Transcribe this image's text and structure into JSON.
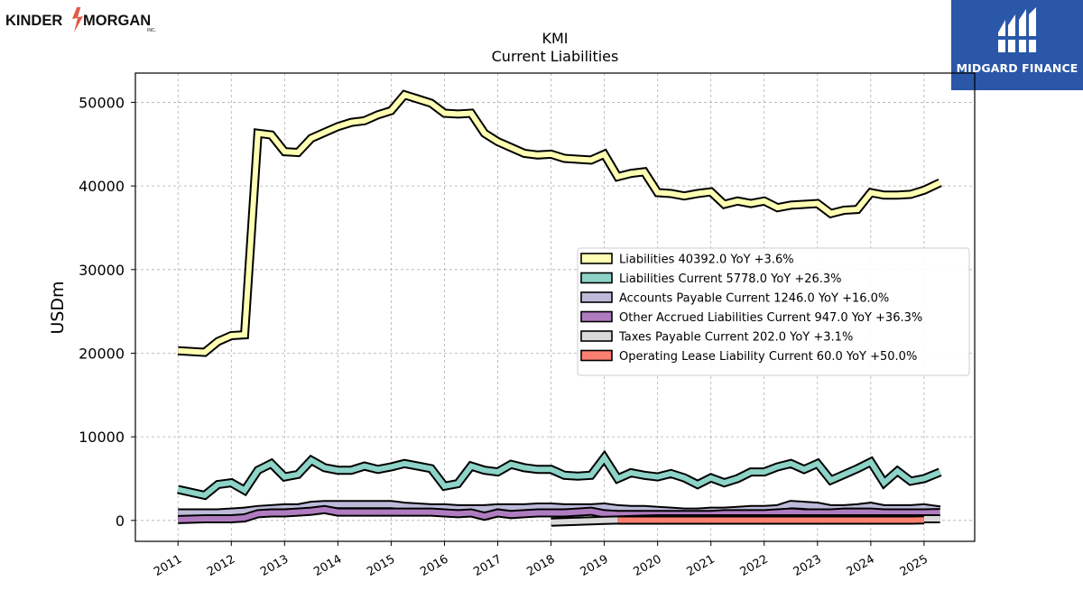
{
  "logos": {
    "left": {
      "text_a": "KINDER",
      "text_b": "MORGAN",
      "sub": "INC."
    },
    "right": {
      "text": "MIDGARD FINANCE"
    }
  },
  "chart_data": {
    "type": "line",
    "title": "KMI",
    "subtitle": "Current  Liabilities",
    "ylabel": "USDm",
    "xlabel": "",
    "ylim": [
      -2500,
      53500
    ],
    "xlim": [
      2010.2,
      2025.95
    ],
    "yticks": [
      0,
      10000,
      20000,
      30000,
      40000,
      50000
    ],
    "xticks": [
      "2011",
      "2012",
      "2013",
      "2014",
      "2015",
      "2016",
      "2017",
      "2018",
      "2019",
      "2020",
      "2021",
      "2022",
      "2023",
      "2024",
      "2025"
    ],
    "grid": true,
    "legend_position": "center-right",
    "series": [
      {
        "name": "Liabilities",
        "legend": "Liabilities  40392.0 YoY +3.6%",
        "color": "#ffffb3",
        "x": [
          2011.0,
          2011.5,
          2011.75,
          2012.0,
          2012.25,
          2012.5,
          2012.75,
          2013.0,
          2013.25,
          2013.5,
          2013.75,
          2014.0,
          2014.25,
          2014.5,
          2014.75,
          2015.0,
          2015.25,
          2015.5,
          2015.75,
          2016.0,
          2016.25,
          2016.5,
          2016.75,
          2017.0,
          2017.25,
          2017.5,
          2017.75,
          2018.0,
          2018.25,
          2018.5,
          2018.75,
          2019.0,
          2019.25,
          2019.5,
          2019.75,
          2020.0,
          2020.25,
          2020.5,
          2020.75,
          2021.0,
          2021.25,
          2021.5,
          2021.75,
          2022.0,
          2022.25,
          2022.5,
          2022.75,
          2023.0,
          2023.25,
          2023.5,
          2023.75,
          2024.0,
          2024.25,
          2024.5,
          2024.75,
          2025.0,
          2025.3
        ],
        "y": [
          20300,
          20100,
          21400,
          22100,
          22200,
          46300,
          46100,
          44100,
          44000,
          45700,
          46400,
          47100,
          47600,
          47800,
          48500,
          49000,
          50900,
          50400,
          49900,
          48700,
          48600,
          48700,
          46300,
          45300,
          44600,
          43900,
          43700,
          43800,
          43300,
          43200,
          43100,
          43800,
          41100,
          41500,
          41700,
          39200,
          39100,
          38800,
          39100,
          39300,
          37800,
          38200,
          37900,
          38200,
          37400,
          37700,
          37800,
          37900,
          36700,
          37100,
          37200,
          39200,
          38900,
          38900,
          39000,
          39500,
          40392
        ]
      },
      {
        "name": "Liabilities Current",
        "legend": "Liabilities Current  5778.0 YoY +26.3%",
        "color": "#8dd3c7",
        "x": [
          2011.0,
          2011.5,
          2011.75,
          2012.0,
          2012.25,
          2012.5,
          2012.75,
          2013.0,
          2013.25,
          2013.5,
          2013.75,
          2014.0,
          2014.25,
          2014.5,
          2014.75,
          2015.0,
          2015.25,
          2015.5,
          2015.75,
          2016.0,
          2016.25,
          2016.5,
          2016.75,
          2017.0,
          2017.25,
          2017.5,
          2017.75,
          2018.0,
          2018.25,
          2018.5,
          2018.75,
          2019.0,
          2019.25,
          2019.5,
          2019.75,
          2020.0,
          2020.25,
          2020.5,
          2020.75,
          2021.0,
          2021.25,
          2021.5,
          2021.75,
          2022.0,
          2022.25,
          2022.5,
          2022.75,
          2023.0,
          2023.25,
          2023.5,
          2023.75,
          2024.0,
          2024.25,
          2024.5,
          2024.75,
          2025.0,
          2025.3
        ],
        "y": [
          3700,
          3000,
          4300,
          4500,
          3600,
          6000,
          6800,
          5200,
          5500,
          7200,
          6300,
          6000,
          6000,
          6500,
          6100,
          6400,
          6800,
          6500,
          6200,
          4100,
          4400,
          6500,
          6000,
          5800,
          6700,
          6300,
          6100,
          6100,
          5400,
          5300,
          5400,
          7500,
          5000,
          5700,
          5400,
          5200,
          5600,
          5100,
          4300,
          5100,
          4500,
          5000,
          5800,
          5800,
          6400,
          6800,
          6100,
          6800,
          4800,
          5500,
          6200,
          7000,
          4500,
          5900,
          4700,
          5000,
          5778
        ]
      },
      {
        "name": "Accounts Payable Current",
        "legend": "Accounts Payable Current  1246.0 YoY +16.0%",
        "color": "#bebada",
        "x": [
          2011.0,
          2011.5,
          2011.75,
          2012.0,
          2012.25,
          2012.5,
          2012.75,
          2013.0,
          2013.25,
          2013.5,
          2013.75,
          2014.0,
          2014.25,
          2014.5,
          2014.75,
          2015.0,
          2015.25,
          2015.5,
          2015.75,
          2016.0,
          2016.25,
          2016.5,
          2016.75,
          2017.0,
          2017.25,
          2017.5,
          2017.75,
          2018.0,
          2018.25,
          2018.5,
          2018.75,
          2019.0,
          2019.25,
          2019.5,
          2019.75,
          2020.0,
          2020.25,
          2020.5,
          2020.75,
          2021.0,
          2021.25,
          2021.5,
          2021.75,
          2022.0,
          2022.25,
          2022.5,
          2022.75,
          2023.0,
          2023.25,
          2023.5,
          2023.75,
          2024.0,
          2024.25,
          2024.5,
          2024.75,
          2025.0,
          2025.3
        ],
        "y": [
          900,
          900,
          900,
          1000,
          1100,
          1300,
          1400,
          1500,
          1500,
          1800,
          1900,
          1900,
          1900,
          1900,
          1900,
          1900,
          1700,
          1600,
          1500,
          1500,
          1400,
          1400,
          1400,
          1500,
          1500,
          1500,
          1600,
          1600,
          1500,
          1500,
          1500,
          1600,
          1400,
          1300,
          1300,
          1200,
          1100,
          1000,
          1000,
          1100,
          1100,
          1200,
          1300,
          1300,
          1400,
          1900,
          1800,
          1700,
          1400,
          1400,
          1500,
          1700,
          1400,
          1400,
          1400,
          1500,
          1246
        ]
      },
      {
        "name": "Other Accrued Liabilities Current",
        "legend": "Other Accrued Liabilities Current  947.0 YoY +36.3%",
        "color": "#b07cc0",
        "x": [
          2011.0,
          2011.5,
          2011.75,
          2012.0,
          2012.25,
          2012.5,
          2012.75,
          2013.0,
          2013.25,
          2013.5,
          2013.75,
          2014.0,
          2014.25,
          2014.5,
          2014.75,
          2015.0,
          2015.25,
          2015.5,
          2015.75,
          2016.0,
          2016.25,
          2016.5,
          2016.75,
          2017.0,
          2017.25,
          2017.5,
          2017.75,
          2018.0,
          2018.25,
          2018.5,
          2018.75,
          2019.0,
          2019.25,
          2019.5,
          2019.75,
          2020.0,
          2020.25,
          2020.5,
          2020.75,
          2021.0,
          2021.25,
          2021.5,
          2021.75,
          2022.0,
          2022.25,
          2022.5,
          2022.75,
          2023.0,
          2023.25,
          2023.5,
          2023.75,
          2024.0,
          2024.25,
          2024.5,
          2024.75,
          2025.0,
          2025.3
        ],
        "y": [
          100,
          200,
          200,
          200,
          300,
          800,
          900,
          900,
          1000,
          1100,
          1300,
          1000,
          1000,
          1000,
          1000,
          1000,
          1000,
          1000,
          1000,
          900,
          800,
          900,
          500,
          900,
          700,
          800,
          900,
          900,
          900,
          1000,
          1100,
          800,
          700,
          700,
          700,
          700,
          700,
          700,
          700,
          700,
          800,
          800,
          800,
          800,
          900,
          1000,
          900,
          900,
          900,
          1000,
          1000,
          1000,
          900,
          900,
          900,
          900,
          947
        ]
      },
      {
        "name": "Taxes Payable Current",
        "legend": "Taxes Payable Current  202.0 YoY +3.1%",
        "color": "#d9d9d9",
        "x": [
          2018.0,
          2018.25,
          2018.5,
          2018.75,
          2019.0,
          2019.25,
          2019.5,
          2019.75,
          2020.0,
          2020.25,
          2020.5,
          2020.75,
          2021.0,
          2021.25,
          2021.5,
          2021.75,
          2022.0,
          2022.25,
          2022.5,
          2022.75,
          2023.0,
          2023.25,
          2023.5,
          2023.75,
          2024.0,
          2024.25,
          2024.5,
          2024.75,
          2025.0,
          2025.3
        ],
        "y": [
          -200,
          -150,
          -100,
          -50,
          0,
          50,
          100,
          150,
          200,
          200,
          200,
          200,
          200,
          200,
          200,
          200,
          200,
          200,
          200,
          200,
          200,
          200,
          200,
          200,
          200,
          200,
          200,
          200,
          200,
          202
        ]
      },
      {
        "name": "Operating Lease Liability Current",
        "legend": "Operating Lease Liability Current  60.0 YoY +50.0%",
        "color": "#fb8072",
        "x": [
          2019.25,
          2019.5,
          2019.75,
          2020.0,
          2020.25,
          2020.5,
          2020.75,
          2021.0,
          2021.25,
          2021.5,
          2021.75,
          2022.0,
          2022.25,
          2022.5,
          2022.75,
          2023.0,
          2023.25,
          2023.5,
          2023.75,
          2024.0,
          2024.25,
          2024.5,
          2024.75,
          2025.0
        ],
        "y": [
          40,
          40,
          40,
          40,
          40,
          40,
          40,
          40,
          40,
          40,
          40,
          40,
          40,
          40,
          40,
          40,
          40,
          40,
          40,
          40,
          40,
          40,
          40,
          60
        ]
      }
    ]
  }
}
